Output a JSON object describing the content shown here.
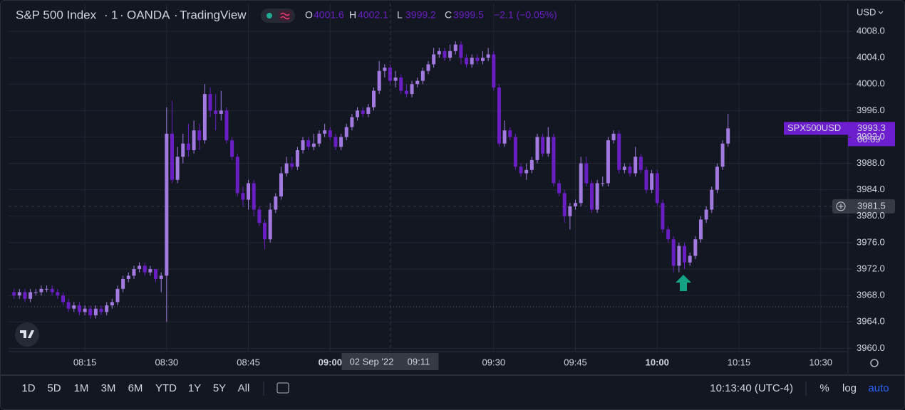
{
  "header": {
    "symbol": "S&P 500 Index",
    "interval": "1",
    "source": "OANDA",
    "platform": "TradingView",
    "legend": [
      {
        "label": "O",
        "value": 4001.6
      },
      {
        "label": "H",
        "value": 4002.1
      },
      {
        "label": "L",
        "value": 3999.2
      },
      {
        "label": "C",
        "value": 3999.5
      }
    ],
    "change": "−2.1 (−0.05%)"
  },
  "chart_data": {
    "type": "candlestick",
    "x": [
      "08:02",
      "08:03",
      "08:04",
      "08:05",
      "08:06",
      "08:07",
      "08:08",
      "08:09",
      "08:10",
      "08:11",
      "08:12",
      "08:13",
      "08:14",
      "08:15",
      "08:16",
      "08:17",
      "08:18",
      "08:19",
      "08:20",
      "08:21",
      "08:22",
      "08:23",
      "08:24",
      "08:25",
      "08:26",
      "08:27",
      "08:28",
      "08:29",
      "08:30",
      "08:31",
      "08:32",
      "08:33",
      "08:34",
      "08:35",
      "08:36",
      "08:37",
      "08:38",
      "08:39",
      "08:40",
      "08:41",
      "08:42",
      "08:43",
      "08:44",
      "08:45",
      "08:46",
      "08:47",
      "08:48",
      "08:49",
      "08:50",
      "08:51",
      "08:52",
      "08:53",
      "08:54",
      "08:55",
      "08:56",
      "08:57",
      "08:58",
      "08:59",
      "09:00",
      "09:01",
      "09:02",
      "09:03",
      "09:04",
      "09:05",
      "09:06",
      "09:07",
      "09:08",
      "09:09",
      "09:10",
      "09:11",
      "09:12",
      "09:13",
      "09:14",
      "09:15",
      "09:16",
      "09:17",
      "09:18",
      "09:19",
      "09:20",
      "09:21",
      "09:22",
      "09:23",
      "09:24",
      "09:25",
      "09:26",
      "09:27",
      "09:28",
      "09:29",
      "09:30",
      "09:31",
      "09:32",
      "09:33",
      "09:34",
      "09:35",
      "09:36",
      "09:37",
      "09:38",
      "09:39",
      "09:40",
      "09:41",
      "09:42",
      "09:43",
      "09:44",
      "09:45",
      "09:46",
      "09:47",
      "09:48",
      "09:49",
      "09:50",
      "09:51",
      "09:52",
      "09:53",
      "09:54",
      "09:55",
      "09:56",
      "09:57",
      "09:58",
      "09:59",
      "10:00",
      "10:01",
      "10:02",
      "10:03",
      "10:04",
      "10:05",
      "10:06",
      "10:07",
      "10:08",
      "10:09",
      "10:10",
      "10:11",
      "10:12",
      "10:13"
    ],
    "open": [
      3968.5,
      3968.0,
      3968.5,
      3967.5,
      3968.5,
      3968.5,
      3969.0,
      3969.0,
      3968.5,
      3968.0,
      3967.0,
      3966.0,
      3966.5,
      3965.5,
      3966.0,
      3965.0,
      3966.0,
      3965.5,
      3966.5,
      3967.0,
      3969.0,
      3970.5,
      3971.0,
      3972.0,
      3972.5,
      3971.5,
      3972.0,
      3970.5,
      3971.0,
      3992.5,
      3985.5,
      3989.0,
      3991.0,
      3990.0,
      3993.0,
      3991.5,
      3998.5,
      3996.0,
      3995.5,
      3996.0,
      3991.5,
      3989.0,
      3983.5,
      3982.5,
      3985.0,
      3981.0,
      3979.0,
      3976.5,
      3981.0,
      3983.0,
      3986.5,
      3988.0,
      3987.5,
      3990.0,
      3991.5,
      3990.5,
      3991.0,
      3992.5,
      3993.0,
      3992.0,
      3990.5,
      3992.0,
      3993.5,
      3995.0,
      3996.0,
      3995.5,
      3996.5,
      3999.0,
      4002.0,
      4002.5,
      4000.5,
      4001.0,
      3999.0,
      3998.5,
      4000.0,
      4000.5,
      4002.0,
      4003.0,
      4004.5,
      4005.0,
      4004.0,
      4005.0,
      4006.0,
      4004.0,
      4003.0,
      4004.0,
      4003.5,
      4004.0,
      4004.5,
      3999.5,
      3991.0,
      3993.0,
      3992.0,
      3987.5,
      3986.5,
      3987.0,
      3988.5,
      3992.0,
      3989.5,
      3992.0,
      3985.0,
      3983.5,
      3980.0,
      3981.5,
      3982.0,
      3988.0,
      3985.0,
      3981.0,
      3985.0,
      3985.0,
      3991.5,
      3992.5,
      3987.0,
      3987.5,
      3986.5,
      3989.0,
      3987.0,
      3984.0,
      3986.5,
      3982.0,
      3978.0,
      3976.5,
      3972.5,
      3975.5,
      3973.0,
      3974.0,
      3976.5,
      3979.5,
      3981.0,
      3984.0,
      3987.5,
      3991.0
    ],
    "high": [
      3969.0,
      3969.0,
      3969.0,
      3969.0,
      3969.0,
      3969.5,
      3969.5,
      3969.5,
      3969.0,
      3968.5,
      3967.5,
      3967.0,
      3967.0,
      3966.5,
      3966.5,
      3966.5,
      3966.5,
      3967.0,
      3967.5,
      3969.5,
      3971.0,
      3971.5,
      3972.5,
      3973.0,
      3973.0,
      3972.5,
      3972.0,
      3971.5,
      3996.5,
      3997.5,
      3990.5,
      3992.5,
      3994.0,
      3994.5,
      3994.0,
      4000.0,
      3999.5,
      3998.5,
      3999.0,
      3996.5,
      3992.0,
      3989.5,
      3984.5,
      3985.5,
      3985.5,
      3981.5,
      3979.5,
      3982.0,
      3983.5,
      3987.5,
      3989.0,
      3989.0,
      3990.5,
      3992.0,
      3992.0,
      3992.5,
      3993.0,
      3994.0,
      3993.5,
      3992.5,
      3992.5,
      3994.0,
      3995.5,
      3996.5,
      3996.5,
      3997.0,
      3999.5,
      4003.5,
      4003.0,
      4003.0,
      4002.0,
      4001.5,
      4000.0,
      4000.5,
      4001.0,
      4002.5,
      4003.5,
      4005.5,
      4005.5,
      4005.5,
      4006.0,
      4006.5,
      4006.5,
      4004.5,
      4004.5,
      4004.5,
      4005.0,
      4005.5,
      4005.0,
      4000.0,
      3994.5,
      3993.5,
      3992.5,
      3988.0,
      3988.0,
      3989.0,
      3992.5,
      3992.5,
      3993.5,
      3992.5,
      3985.5,
      3984.0,
      3982.0,
      3982.5,
      3989.0,
      3989.0,
      3985.5,
      3985.5,
      3986.0,
      3992.0,
      3993.0,
      3993.0,
      3988.0,
      3988.0,
      3990.5,
      3989.5,
      3987.5,
      3987.0,
      3987.0,
      3982.5,
      3978.5,
      3977.0,
      3976.0,
      3976.0,
      3974.5,
      3977.0,
      3980.0,
      3981.5,
      3984.5,
      3988.0,
      3991.5,
      3995.5
    ],
    "low": [
      3967.5,
      3967.5,
      3967.0,
      3967.0,
      3968.0,
      3968.0,
      3968.5,
      3968.0,
      3967.5,
      3966.5,
      3965.5,
      3965.5,
      3965.0,
      3965.0,
      3964.5,
      3964.5,
      3965.0,
      3965.0,
      3966.0,
      3966.5,
      3968.5,
      3970.0,
      3970.5,
      3971.5,
      3971.0,
      3971.0,
      3970.0,
      3968.5,
      3964.0,
      3985.0,
      3985.0,
      3988.0,
      3989.0,
      3989.5,
      3990.0,
      3991.0,
      3995.0,
      3993.0,
      3994.5,
      3991.0,
      3988.5,
      3983.0,
      3981.5,
      3981.0,
      3980.0,
      3978.5,
      3975.0,
      3976.0,
      3980.5,
      3982.5,
      3986.0,
      3987.0,
      3987.0,
      3989.5,
      3990.0,
      3990.0,
      3990.5,
      3992.0,
      3991.5,
      3990.0,
      3990.0,
      3991.5,
      3993.0,
      3994.5,
      3995.0,
      3995.0,
      3996.0,
      3998.5,
      4001.0,
      4000.0,
      3999.5,
      3998.5,
      3998.0,
      3998.0,
      3999.5,
      4000.0,
      4001.5,
      4002.5,
      4004.0,
      4003.5,
      4003.5,
      4004.5,
      4003.0,
      4002.5,
      4002.5,
      4003.0,
      4003.0,
      4003.5,
      3999.0,
      3990.5,
      3990.5,
      3991.5,
      3987.0,
      3986.0,
      3985.5,
      3986.5,
      3988.0,
      3989.0,
      3989.0,
      3984.5,
      3983.0,
      3979.0,
      3978.0,
      3981.0,
      3981.5,
      3984.5,
      3980.5,
      3980.5,
      3984.5,
      3984.5,
      3991.0,
      3986.5,
      3986.5,
      3986.0,
      3986.0,
      3986.5,
      3983.5,
      3983.5,
      3981.5,
      3977.5,
      3976.0,
      3971.5,
      3971.5,
      3972.0,
      3972.5,
      3973.5,
      3976.0,
      3979.0,
      3980.5,
      3983.5,
      3987.0,
      3990.5
    ],
    "close": [
      3968.0,
      3968.5,
      3967.5,
      3968.5,
      3968.5,
      3969.0,
      3969.0,
      3968.5,
      3968.0,
      3967.0,
      3966.0,
      3966.5,
      3965.5,
      3966.0,
      3965.0,
      3966.0,
      3965.5,
      3966.5,
      3967.0,
      3969.0,
      3970.5,
      3971.0,
      3972.0,
      3972.5,
      3971.5,
      3972.0,
      3970.5,
      3971.0,
      3992.5,
      3985.5,
      3989.0,
      3991.0,
      3990.0,
      3993.0,
      3991.5,
      3998.5,
      3996.0,
      3995.5,
      3996.0,
      3991.5,
      3989.0,
      3983.5,
      3982.5,
      3985.0,
      3981.0,
      3979.0,
      3976.5,
      3981.0,
      3983.0,
      3986.5,
      3988.0,
      3987.5,
      3990.0,
      3991.5,
      3990.5,
      3991.0,
      3992.5,
      3993.0,
      3992.0,
      3990.5,
      3992.0,
      3993.5,
      3995.0,
      3996.0,
      3995.5,
      3996.5,
      3999.0,
      4002.0,
      4002.5,
      4000.5,
      4001.0,
      3999.0,
      3998.5,
      4000.0,
      4000.5,
      4002.0,
      4003.0,
      4004.5,
      4005.0,
      4004.0,
      4005.0,
      4006.0,
      4004.0,
      4003.0,
      4004.0,
      4003.5,
      4004.0,
      4004.5,
      3999.5,
      3991.0,
      3993.0,
      3992.0,
      3987.5,
      3986.5,
      3987.0,
      3988.5,
      3992.0,
      3989.5,
      3992.0,
      3985.0,
      3983.5,
      3980.0,
      3981.5,
      3982.0,
      3988.0,
      3985.0,
      3981.0,
      3985.0,
      3985.0,
      3991.5,
      3992.5,
      3987.0,
      3987.5,
      3986.5,
      3989.0,
      3987.0,
      3984.0,
      3986.5,
      3982.0,
      3978.0,
      3976.5,
      3972.5,
      3975.5,
      3973.0,
      3974.0,
      3976.5,
      3979.5,
      3981.0,
      3984.0,
      3987.5,
      3991.0,
      3993.3
    ],
    "up_color": "#a27ae0",
    "down_color": "#6a1fc4",
    "xlim": [
      "08:01",
      "10:35"
    ],
    "xticks": [
      "08:15",
      "08:30",
      "08:45",
      "09:00",
      "09:30",
      "09:45",
      "10:00",
      "10:15",
      "10:30"
    ],
    "y_unit": "USD",
    "ylim": [
      3959.5,
      4012.2
    ],
    "yticks": [
      {
        "value": 3960,
        "label": "3960.0"
      },
      {
        "value": 3964,
        "label": "3964.0"
      },
      {
        "value": 3968,
        "label": "3968.0"
      },
      {
        "value": 3972,
        "label": "3972.0"
      },
      {
        "value": 3976,
        "label": "3976.0"
      },
      {
        "value": 3980,
        "label": "3980.0"
      },
      {
        "value": 3984,
        "label": "3984.0"
      },
      {
        "value": 3988,
        "label": "3988.0"
      },
      {
        "value": 3992,
        "label": "3992.0"
      },
      {
        "value": 3996,
        "label": "3996.0"
      },
      {
        "value": 4000,
        "label": "4000.0"
      },
      {
        "value": 4004,
        "label": "4004.0"
      },
      {
        "value": 4008,
        "label": "4008.0"
      }
    ],
    "grid": true,
    "reference_line": 3966.3,
    "last_price": {
      "symbol": "SPX500USD",
      "value": 3993.3,
      "countdown": "00:09",
      "color": "#6d1fd0"
    },
    "crosshair": {
      "price": 3981.5,
      "date": "02 Sep '22",
      "time": "09:11"
    }
  },
  "toolbar": {
    "ranges": [
      "1D",
      "5D",
      "1M",
      "3M",
      "6M",
      "YTD",
      "1Y",
      "5Y",
      "All"
    ],
    "clock": "10:13:40 (UTC-4)",
    "options": [
      "%",
      "log",
      "auto"
    ]
  }
}
